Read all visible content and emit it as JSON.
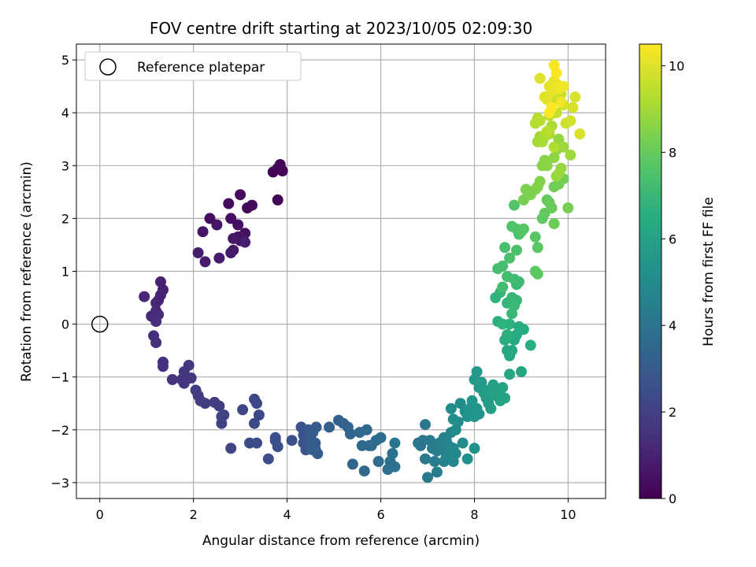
{
  "chart_data": {
    "type": "scatter",
    "title": "FOV centre drift starting at 2023/10/05 02:09:30",
    "xlabel": "Angular distance from reference (arcmin)",
    "ylabel": "Rotation from reference (arcmin)",
    "xlim": [
      -0.5,
      10.8
    ],
    "ylim": [
      -3.3,
      5.3
    ],
    "xticks": [
      "0",
      "2",
      "4",
      "6",
      "8",
      "10"
    ],
    "yticks": [
      "−3",
      "−2",
      "−1",
      "0",
      "1",
      "2",
      "3",
      "4",
      "5"
    ],
    "grid": true,
    "legend": {
      "placement": "top-left",
      "entries": [
        "Reference platepar"
      ]
    },
    "reference_point": {
      "name": "Reference platepar",
      "x": 0,
      "y": 0
    },
    "colorbar": {
      "label": "Hours from first FF file",
      "range": [
        0,
        10.5
      ],
      "ticks": [
        "0",
        "2",
        "4",
        "6",
        "8",
        "10"
      ],
      "colormap": "viridis"
    },
    "series": [
      {
        "points": [
          [
            3.85,
            3.02
          ],
          [
            3.9,
            2.9
          ],
          [
            3.8,
            2.35
          ],
          [
            3.7,
            2.88
          ],
          [
            3.8,
            2.95
          ],
          [
            3.15,
            2.2
          ],
          [
            3.25,
            2.25
          ],
          [
            3.0,
            2.45
          ],
          [
            2.75,
            2.28
          ],
          [
            2.35,
            2.0
          ],
          [
            2.8,
            2.0
          ],
          [
            2.95,
            1.88
          ],
          [
            2.95,
            1.65
          ],
          [
            3.1,
            1.72
          ],
          [
            3.0,
            1.58
          ],
          [
            2.5,
            1.88
          ],
          [
            2.2,
            1.75
          ],
          [
            2.85,
            1.62
          ],
          [
            2.85,
            1.4
          ],
          [
            2.8,
            1.35
          ],
          [
            2.55,
            1.25
          ],
          [
            2.25,
            1.18
          ],
          [
            2.1,
            1.35
          ],
          [
            3.1,
            1.55
          ],
          [
            1.3,
            0.8
          ],
          [
            1.35,
            0.65
          ],
          [
            1.25,
            0.45
          ],
          [
            1.3,
            0.55
          ],
          [
            1.2,
            0.4
          ],
          [
            0.95,
            0.52
          ],
          [
            1.2,
            0.25
          ],
          [
            1.1,
            0.15
          ],
          [
            1.25,
            0.18
          ],
          [
            1.2,
            0.05
          ],
          [
            1.15,
            -0.22
          ],
          [
            1.2,
            -0.35
          ],
          [
            1.35,
            -0.72
          ],
          [
            1.35,
            -0.8
          ],
          [
            1.55,
            -1.05
          ],
          [
            1.75,
            -1.05
          ],
          [
            1.8,
            -1.12
          ],
          [
            1.8,
            -0.9
          ],
          [
            1.95,
            -1.02
          ],
          [
            1.9,
            -0.78
          ],
          [
            2.1,
            -1.35
          ],
          [
            2.15,
            -1.45
          ],
          [
            2.25,
            -1.5
          ],
          [
            2.05,
            -1.25
          ],
          [
            2.45,
            -1.48
          ],
          [
            2.55,
            -1.55
          ],
          [
            2.6,
            -1.75
          ],
          [
            2.6,
            -1.88
          ],
          [
            2.65,
            -1.72
          ],
          [
            2.8,
            -2.35
          ],
          [
            3.05,
            -1.62
          ],
          [
            3.3,
            -1.42
          ],
          [
            3.35,
            -1.5
          ],
          [
            3.4,
            -1.72
          ],
          [
            3.3,
            -1.88
          ],
          [
            3.2,
            -2.25
          ],
          [
            3.35,
            -2.25
          ],
          [
            3.6,
            -2.55
          ],
          [
            3.75,
            -2.2
          ],
          [
            3.75,
            -2.15
          ],
          [
            3.8,
            -2.32
          ],
          [
            4.1,
            -2.2
          ],
          [
            4.3,
            -1.95
          ],
          [
            4.35,
            -2.1
          ],
          [
            4.35,
            -2.25
          ],
          [
            4.4,
            -2.3
          ],
          [
            4.4,
            -2.38
          ],
          [
            4.45,
            -2.0
          ],
          [
            4.5,
            -2.15
          ],
          [
            4.5,
            -2.28
          ],
          [
            4.6,
            -2.35
          ],
          [
            4.6,
            -2.25
          ],
          [
            4.62,
            -1.95
          ],
          [
            4.65,
            -2.45
          ],
          [
            4.55,
            -2.05
          ],
          [
            4.55,
            -2.38
          ],
          [
            4.9,
            -1.95
          ],
          [
            5.1,
            -1.82
          ],
          [
            5.2,
            -1.88
          ],
          [
            5.3,
            -1.95
          ],
          [
            5.35,
            -2.08
          ],
          [
            5.4,
            -2.65
          ],
          [
            5.55,
            -2.05
          ],
          [
            5.65,
            -2.78
          ],
          [
            5.6,
            -2.3
          ],
          [
            5.7,
            -2.0
          ],
          [
            5.75,
            -2.3
          ],
          [
            5.8,
            -2.3
          ],
          [
            5.9,
            -2.2
          ],
          [
            5.95,
            -2.6
          ],
          [
            6.0,
            -2.15
          ],
          [
            6.15,
            -2.75
          ],
          [
            6.2,
            -2.6
          ],
          [
            6.25,
            -2.45
          ],
          [
            6.3,
            -2.7
          ],
          [
            6.3,
            -2.25
          ],
          [
            6.8,
            -2.25
          ],
          [
            6.85,
            -2.3
          ],
          [
            6.9,
            -2.2
          ],
          [
            6.95,
            -1.9
          ],
          [
            6.95,
            -2.55
          ],
          [
            7.0,
            -2.9
          ],
          [
            7.05,
            -2.2
          ],
          [
            7.1,
            -2.35
          ],
          [
            7.15,
            -2.6
          ],
          [
            7.2,
            -2.8
          ],
          [
            7.2,
            -2.4
          ],
          [
            7.25,
            -2.25
          ],
          [
            7.3,
            -2.35
          ],
          [
            7.35,
            -2.15
          ],
          [
            7.35,
            -2.6
          ],
          [
            7.4,
            -2.2
          ],
          [
            7.4,
            -2.5
          ],
          [
            7.45,
            -2.3
          ],
          [
            7.5,
            -2.4
          ],
          [
            7.5,
            -2.05
          ],
          [
            7.55,
            -2.6
          ],
          [
            7.55,
            -2.35
          ],
          [
            7.6,
            -2.45
          ],
          [
            7.6,
            -2.0
          ],
          [
            7.65,
            -1.85
          ],
          [
            7.7,
            -1.5
          ],
          [
            7.75,
            -2.25
          ],
          [
            7.5,
            -1.6
          ],
          [
            7.55,
            -1.8
          ],
          [
            7.8,
            -1.65
          ],
          [
            7.85,
            -2.55
          ],
          [
            8.0,
            -2.35
          ],
          [
            7.85,
            -1.75
          ],
          [
            7.9,
            -1.6
          ],
          [
            8.0,
            -1.75
          ],
          [
            8.05,
            -1.6
          ],
          [
            8.1,
            -1.7
          ],
          [
            7.95,
            -1.45
          ],
          [
            8.0,
            -1.05
          ],
          [
            8.05,
            -0.9
          ],
          [
            8.1,
            -1.2
          ],
          [
            8.15,
            -1.1
          ],
          [
            8.2,
            -1.3
          ],
          [
            8.25,
            -1.4
          ],
          [
            8.3,
            -1.5
          ],
          [
            8.35,
            -1.6
          ],
          [
            8.3,
            -1.25
          ],
          [
            8.4,
            -1.15
          ],
          [
            8.45,
            -1.35
          ],
          [
            8.5,
            -1.3
          ],
          [
            8.55,
            -1.45
          ],
          [
            8.6,
            -1.2
          ],
          [
            8.65,
            -1.4
          ],
          [
            8.75,
            -0.95
          ],
          [
            9.0,
            -0.9
          ],
          [
            8.7,
            -0.5
          ],
          [
            8.75,
            -0.6
          ],
          [
            8.8,
            -0.5
          ],
          [
            8.85,
            -0.3
          ],
          [
            8.9,
            -0.2
          ],
          [
            8.95,
            -0.05
          ],
          [
            9.05,
            -0.1
          ],
          [
            9.2,
            -0.4
          ],
          [
            8.65,
            -0.3
          ],
          [
            8.7,
            -0.2
          ],
          [
            8.75,
            0.0
          ],
          [
            8.5,
            0.05
          ],
          [
            8.6,
            0.0
          ],
          [
            8.45,
            0.5
          ],
          [
            8.55,
            0.6
          ],
          [
            8.7,
            0.4
          ],
          [
            8.8,
            0.5
          ],
          [
            8.9,
            0.45
          ],
          [
            8.8,
            0.2
          ],
          [
            8.85,
            0.35
          ],
          [
            8.9,
            0.75
          ],
          [
            8.95,
            0.8
          ],
          [
            8.85,
            0.85
          ],
          [
            8.6,
            0.7
          ],
          [
            8.7,
            0.9
          ],
          [
            8.5,
            1.05
          ],
          [
            8.6,
            1.1
          ],
          [
            8.65,
            1.45
          ],
          [
            8.75,
            1.25
          ],
          [
            8.9,
            1.4
          ],
          [
            8.95,
            1.7
          ],
          [
            8.8,
            1.85
          ],
          [
            8.9,
            1.8
          ],
          [
            8.85,
            2.25
          ],
          [
            9.0,
            1.75
          ],
          [
            9.05,
            1.8
          ],
          [
            9.3,
            1.65
          ],
          [
            9.35,
            1.45
          ],
          [
            9.3,
            1.0
          ],
          [
            9.35,
            0.95
          ],
          [
            9.45,
            2.0
          ],
          [
            9.5,
            2.1
          ],
          [
            9.55,
            2.35
          ],
          [
            9.6,
            2.3
          ],
          [
            9.65,
            2.2
          ],
          [
            9.7,
            1.9
          ],
          [
            9.7,
            2.6
          ],
          [
            9.8,
            2.65
          ],
          [
            9.9,
            2.75
          ],
          [
            10.0,
            2.2
          ],
          [
            9.05,
            2.35
          ],
          [
            9.1,
            2.55
          ],
          [
            9.2,
            2.45
          ],
          [
            9.3,
            2.55
          ],
          [
            9.35,
            2.6
          ],
          [
            9.4,
            2.7
          ],
          [
            9.45,
            3.0
          ],
          [
            9.5,
            3.1
          ],
          [
            9.55,
            3.0
          ],
          [
            9.7,
            3.15
          ],
          [
            9.75,
            3.3
          ],
          [
            9.8,
            3.5
          ],
          [
            9.85,
            2.95
          ],
          [
            9.75,
            2.8
          ],
          [
            9.8,
            2.85
          ],
          [
            9.9,
            3.35
          ],
          [
            10.05,
            3.2
          ],
          [
            9.35,
            3.45
          ],
          [
            9.4,
            3.55
          ],
          [
            9.45,
            3.45
          ],
          [
            9.5,
            3.55
          ],
          [
            9.6,
            3.6
          ],
          [
            9.65,
            3.75
          ],
          [
            9.7,
            3.35
          ],
          [
            9.3,
            3.8
          ],
          [
            9.35,
            3.9
          ],
          [
            9.4,
            3.85
          ],
          [
            9.55,
            3.65
          ],
          [
            9.6,
            3.95
          ],
          [
            9.65,
            4.05
          ],
          [
            9.7,
            4.2
          ],
          [
            9.75,
            4.0
          ],
          [
            9.8,
            4.3
          ],
          [
            9.85,
            4.35
          ],
          [
            9.9,
            4.15
          ],
          [
            9.95,
            3.8
          ],
          [
            10.05,
            3.85
          ],
          [
            10.1,
            4.1
          ],
          [
            10.15,
            4.3
          ],
          [
            10.25,
            3.6
          ],
          [
            9.4,
            4.65
          ],
          [
            9.5,
            4.3
          ],
          [
            9.55,
            4.25
          ],
          [
            9.6,
            4.5
          ],
          [
            9.65,
            4.4
          ],
          [
            9.7,
            4.6
          ],
          [
            9.75,
            4.55
          ],
          [
            9.8,
            4.45
          ],
          [
            9.85,
            4.2
          ],
          [
            9.9,
            4.5
          ],
          [
            9.7,
            4.9
          ],
          [
            9.75,
            4.75
          ],
          [
            9.6,
            4.0
          ],
          [
            9.65,
            4.1
          ]
        ]
      }
    ]
  }
}
